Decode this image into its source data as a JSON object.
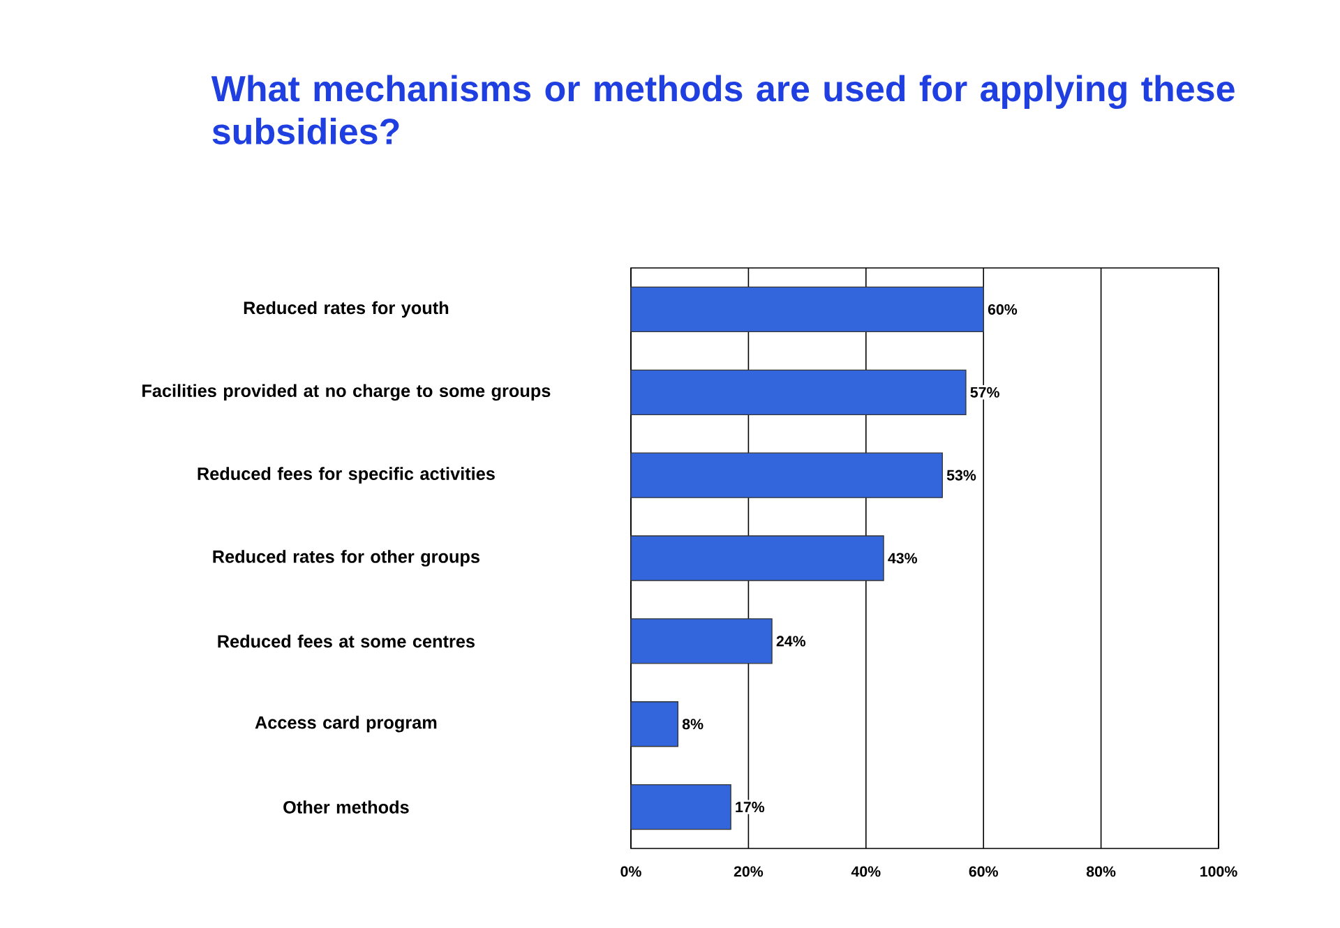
{
  "chart_data": {
    "type": "bar",
    "orientation": "horizontal",
    "title": "What mechanisms or methods are used for applying these subsidies?",
    "categories": [
      "Reduced rates for youth",
      "Facilities provided at no charge to some groups",
      "Reduced fees for specific activities",
      "Reduced rates for other groups",
      "Reduced fees at some centres",
      "Access card program",
      "Other methods"
    ],
    "values": [
      60,
      57,
      53,
      43,
      24,
      8,
      17
    ],
    "value_labels": [
      "60%",
      "57%",
      "53%",
      "43%",
      "24%",
      "8%",
      "17%"
    ],
    "color": "#3366dd",
    "xlim": [
      0,
      100
    ],
    "xticks": [
      {
        "value": 0,
        "label": "0%"
      },
      {
        "value": 20,
        "label": "20%"
      },
      {
        "value": 40,
        "label": "40%"
      },
      {
        "value": 60,
        "label": "60%"
      },
      {
        "value": 80,
        "label": "80%"
      },
      {
        "value": 100,
        "label": "100%"
      }
    ],
    "grid": "x"
  }
}
